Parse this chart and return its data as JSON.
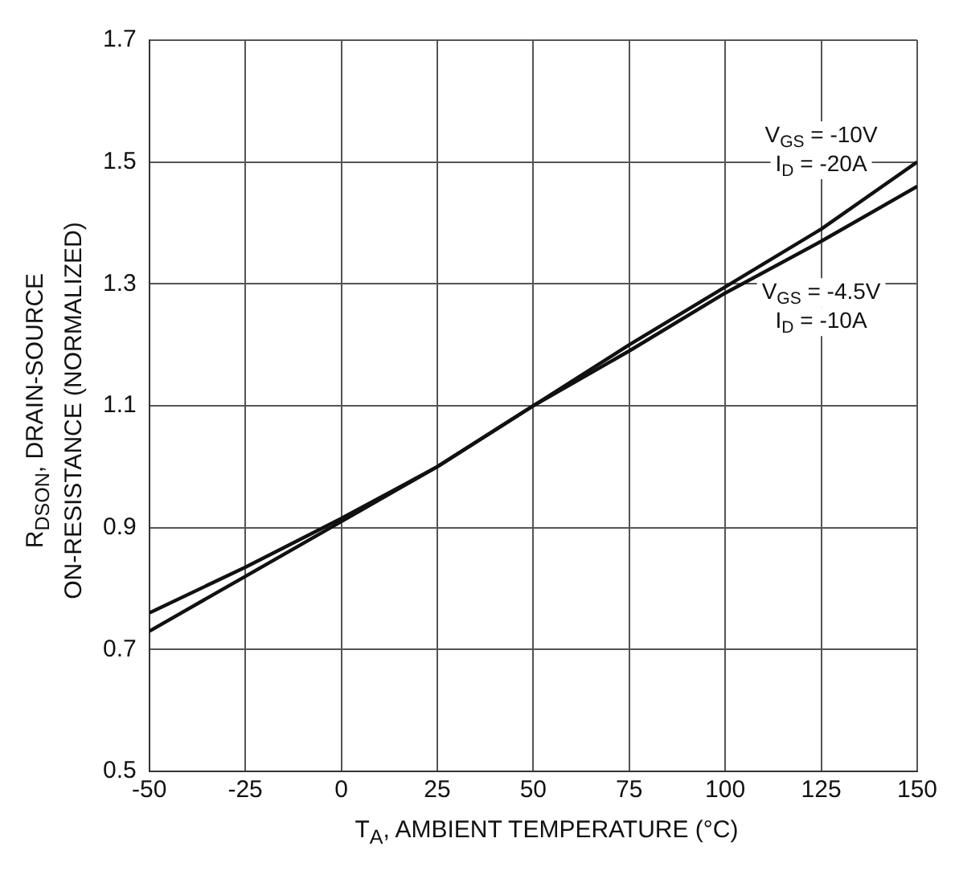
{
  "chart_data": {
    "type": "line",
    "xlabel": "T$_{A}$, AMBIENT TEMPERATURE (°C)",
    "ylabel": "R$_{DSON}$, DRAIN-SOURCE\nON-RESISTANCE (NORMALIZED)",
    "x": [
      -50,
      -25,
      0,
      25,
      50,
      75,
      100,
      125,
      150
    ],
    "series": [
      {
        "name": "V$_{GS}$ = -10V\nI$_{D}$ = -20A",
        "color": "#111111",
        "values": [
          0.73,
          0.82,
          0.91,
          1.0,
          1.1,
          1.2,
          1.295,
          1.39,
          1.5
        ]
      },
      {
        "name": "V$_{GS}$ = -4.5V\nI$_{D}$ = -10A",
        "color": "#111111",
        "values": [
          0.76,
          0.835,
          0.915,
          1.0,
          1.1,
          1.19,
          1.285,
          1.37,
          1.46
        ]
      }
    ],
    "xlim": [
      -50,
      150
    ],
    "xticks": [
      -50,
      -25,
      0,
      25,
      50,
      75,
      100,
      125,
      150
    ],
    "ylim": [
      0.5,
      1.7
    ],
    "yticks": [
      0.5,
      0.7,
      0.9,
      1.1,
      1.3,
      1.5,
      1.7
    ],
    "grid": true,
    "legend": false,
    "marker": "none",
    "line_style": "solid"
  }
}
